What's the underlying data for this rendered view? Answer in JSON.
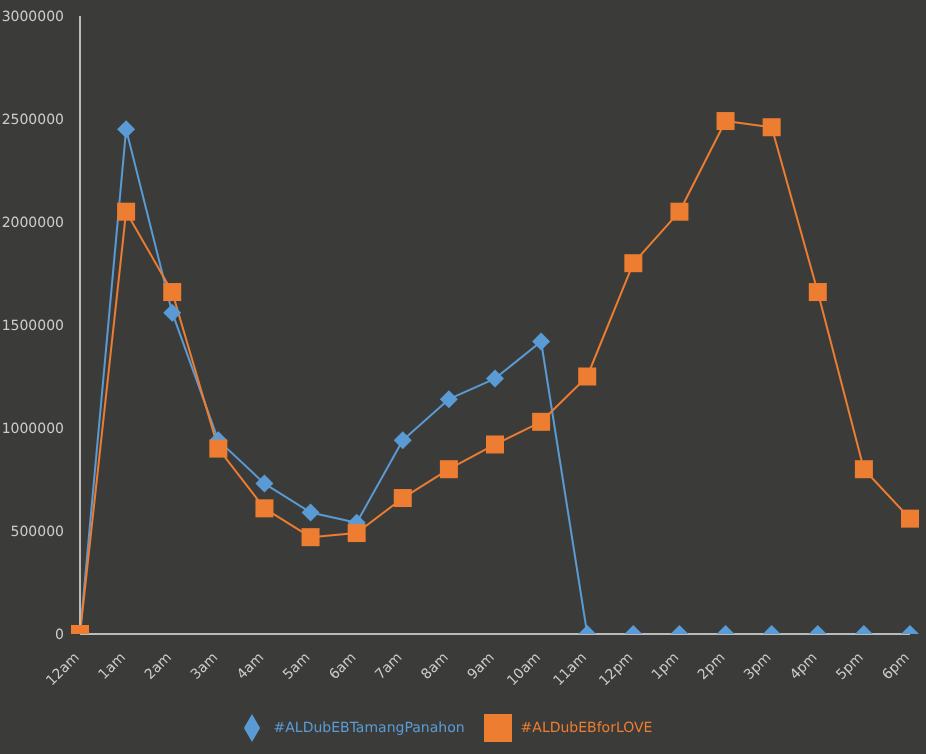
{
  "chart_data": {
    "type": "line",
    "categories": [
      "12am",
      "1am",
      "2am",
      "3am",
      "4am",
      "5am",
      "6am",
      "7am",
      "8am",
      "9am",
      "10am",
      "11am",
      "12pm",
      "1pm",
      "2pm",
      "3pm",
      "4pm",
      "5pm",
      "6pm"
    ],
    "series": [
      {
        "name": "#ALDubEBTamangPanahon",
        "color": "#5b9bd5",
        "marker": "diamond",
        "values": [
          0,
          2450000,
          1560000,
          940000,
          730000,
          590000,
          540000,
          940000,
          1140000,
          1240000,
          1420000,
          0,
          0,
          0,
          0,
          0,
          0,
          0,
          0
        ]
      },
      {
        "name": "#ALDubEBforLOVE",
        "color": "#ed7d31",
        "marker": "square",
        "values": [
          0,
          2050000,
          1660000,
          900000,
          610000,
          470000,
          490000,
          660000,
          800000,
          920000,
          1030000,
          1250000,
          1800000,
          2050000,
          2490000,
          2460000,
          1660000,
          800000,
          560000
        ]
      }
    ],
    "ylim": [
      0,
      3000000
    ],
    "yticks": [
      0,
      500000,
      1000000,
      1500000,
      2000000,
      2500000,
      3000000
    ],
    "grid": false,
    "legend": "bottom"
  }
}
